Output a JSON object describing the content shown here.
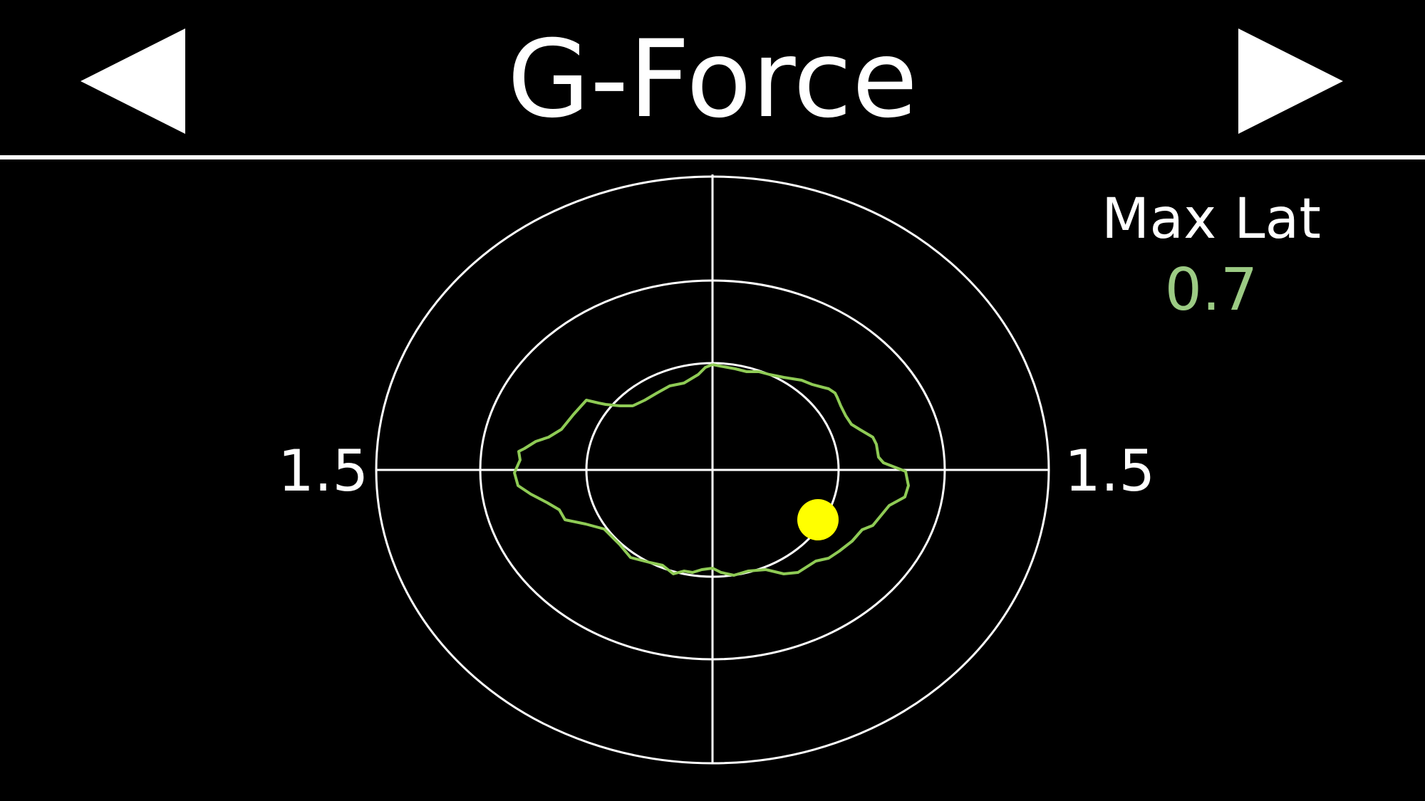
{
  "header": {
    "title": "G-Force",
    "prev_icon": "triangle-left-icon",
    "next_icon": "triangle-right-icon"
  },
  "plot": {
    "left_scale_label": "1.5",
    "right_scale_label": "1.5",
    "trace_color": "#8fcb55",
    "dot_color": "#ffff00",
    "ring_color": "#ffffff"
  },
  "stats": {
    "max_lat_label": "Max Lat",
    "max_lat_value": "0.7",
    "value_color": "#9ccb84"
  }
}
